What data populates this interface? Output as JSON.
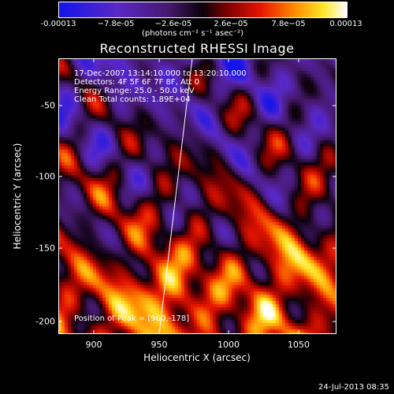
{
  "colorbar": {
    "ticks": [
      "-0.00013",
      "−7.8e-05",
      "−2.6e-05",
      "2.6e−05",
      "7.8e−05",
      "0.00013"
    ],
    "unit": "(photons cm⁻² s⁻¹ asec⁻²)"
  },
  "plot": {
    "title": "Reconstructed RHESSI Image",
    "ann": {
      "line1": "17-Dec-2007 13:14:10.000 to 13:20:10.000",
      "line2": "Detectors: 4F 5F 6F 7F 8F, Att 0",
      "line3": "Energy Range: 25.0 - 50.0 keV",
      "line4": "Clean     Total counts: 1.89E+04",
      "peak": "Position of Peak = [960,-178]"
    },
    "xlabel": "Heliocentric X (arcsec)",
    "ylabel": "Heliocentric Y (arcsec)",
    "xticks": [
      "900",
      "950",
      "1000",
      "1050"
    ],
    "yticks": [
      "-50",
      "-100",
      "-150",
      "-200"
    ]
  },
  "footer": {
    "date": "24-Jul-2013 08:35"
  }
}
